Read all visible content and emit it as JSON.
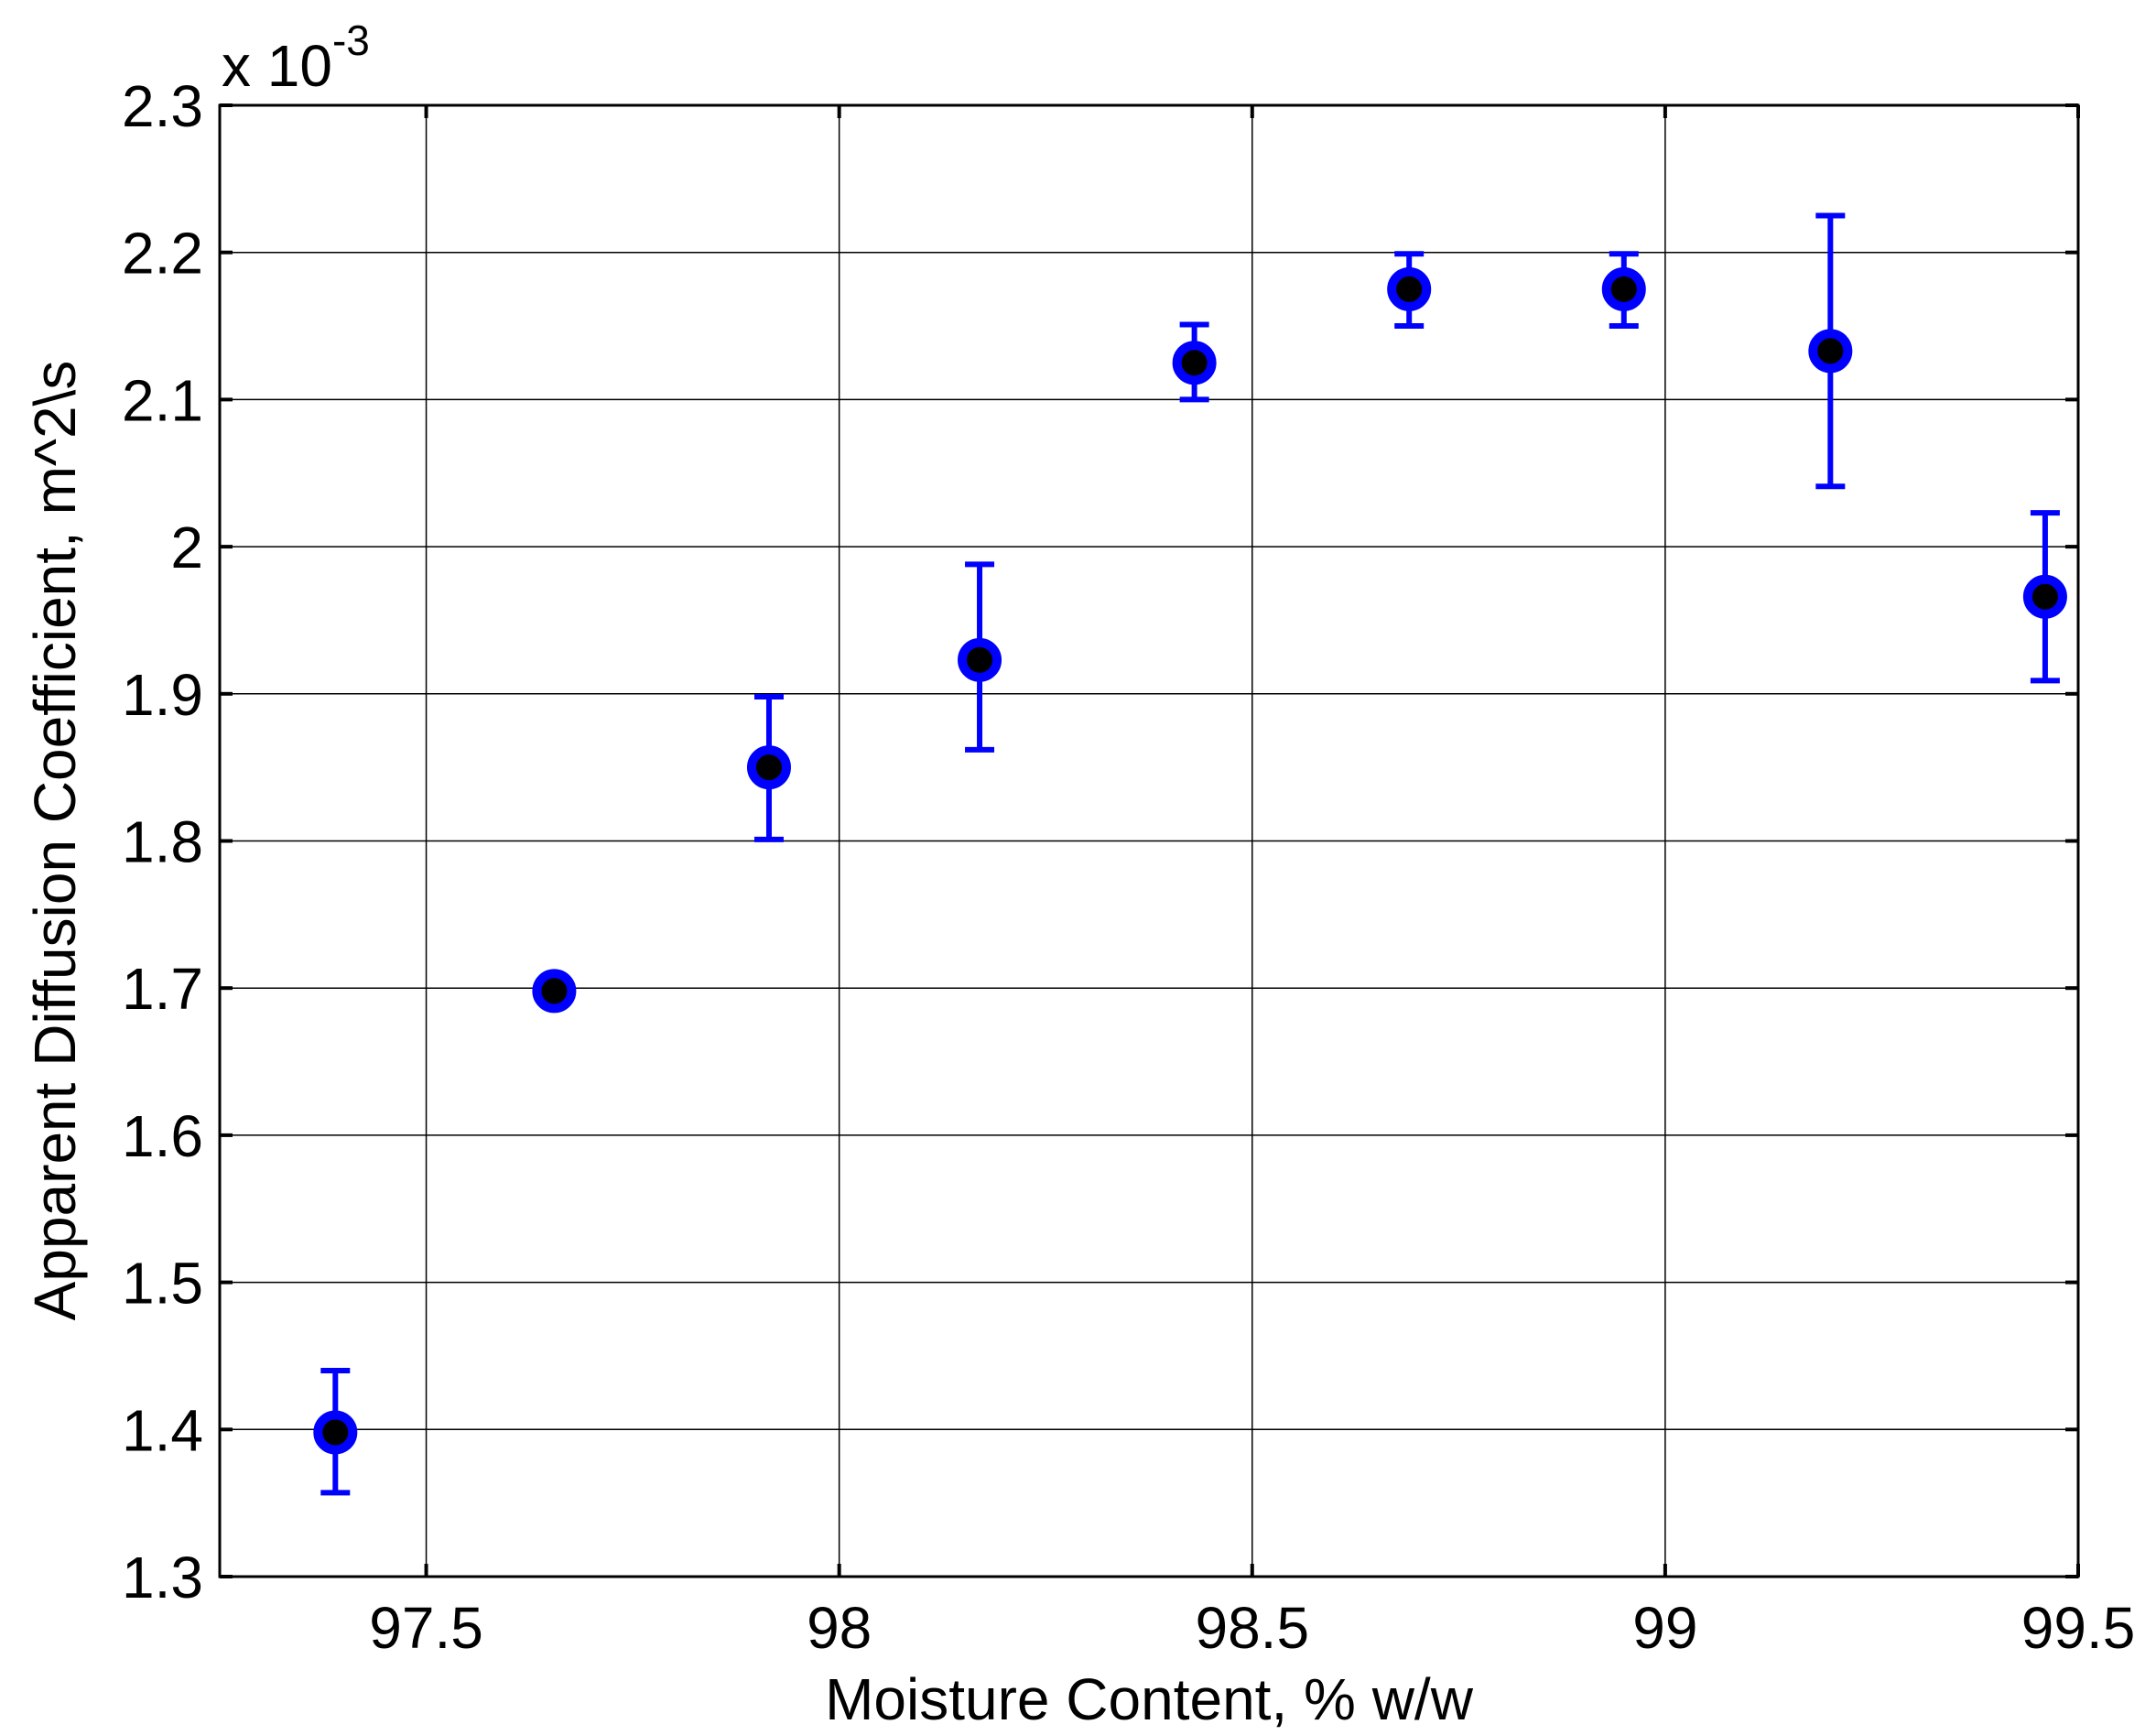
{
  "chart_data": {
    "type": "scatter",
    "title": "",
    "xlabel": "Moisture Content, % w/w",
    "ylabel": "Apparent Diffusion Coefficient, m^2\\s",
    "y_multiplier": {
      "base": "x 10",
      "exponent": "-3"
    },
    "xlim": [
      97.25,
      99.5
    ],
    "ylim": [
      1.3,
      2.3
    ],
    "xticks": [
      97.5,
      98,
      98.5,
      99,
      99.5
    ],
    "xtick_labels": [
      "97.5",
      "98",
      "98.5",
      "99",
      "99.5"
    ],
    "yticks": [
      1.3,
      1.4,
      1.5,
      1.6,
      1.7,
      1.8,
      1.9,
      2.0,
      2.1,
      2.2,
      2.3
    ],
    "ytick_labels": [
      "1.3",
      "1.4",
      "1.5",
      "1.6",
      "1.7",
      "1.8",
      "1.9",
      "2",
      "2.1",
      "2.2",
      "2.3"
    ],
    "grid": true,
    "legend": "none",
    "series": [
      {
        "x": [
          97.39,
          97.655,
          97.915,
          98.17,
          98.43,
          98.69,
          98.95,
          99.2,
          99.46
        ],
        "y": [
          1.398,
          1.698,
          1.85,
          1.923,
          2.125,
          2.175,
          2.175,
          2.133,
          1.966
        ],
        "err_low": [
          1.357,
          1.698,
          1.801,
          1.862,
          2.1,
          2.15,
          2.15,
          2.041,
          1.909
        ],
        "err_high": [
          1.44,
          1.698,
          1.898,
          1.988,
          2.151,
          2.199,
          2.199,
          2.225,
          2.023
        ]
      }
    ],
    "colors": {
      "marker_edge": "#0000ff",
      "marker_fill": "#000000",
      "errorbar": "#0000ff",
      "grid": "#000000",
      "axes": "#000000"
    }
  }
}
